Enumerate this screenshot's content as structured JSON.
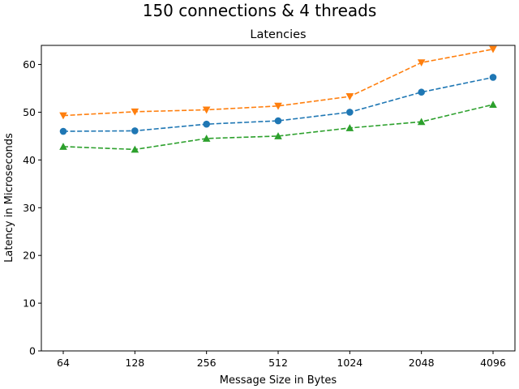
{
  "figure": {
    "suptitle": "150 connections & 4 threads"
  },
  "chart_data": {
    "type": "line",
    "title": "Latencies",
    "xlabel": "Message Size in Bytes",
    "ylabel": "Latency in Microseconds",
    "categories": [
      "64",
      "128",
      "256",
      "512",
      "1024",
      "2048",
      "4096"
    ],
    "ylim": [
      0,
      64
    ],
    "yticks": [
      0,
      10,
      20,
      30,
      40,
      50,
      60
    ],
    "grid": false,
    "series": [
      {
        "color": "#1f77b4",
        "marker": "circle",
        "linestyle": "dashed",
        "values": [
          46.0,
          46.1,
          47.5,
          48.2,
          50.0,
          54.2,
          57.3
        ]
      },
      {
        "color": "#ff7f0e",
        "marker": "triangle-down",
        "linestyle": "dashed",
        "values": [
          49.3,
          50.1,
          50.5,
          51.3,
          53.3,
          60.4,
          63.2
        ]
      },
      {
        "color": "#2ca02c",
        "marker": "triangle-up",
        "linestyle": "dashed",
        "values": [
          42.8,
          42.2,
          44.5,
          45.0,
          46.7,
          48.0,
          51.6
        ]
      }
    ]
  }
}
